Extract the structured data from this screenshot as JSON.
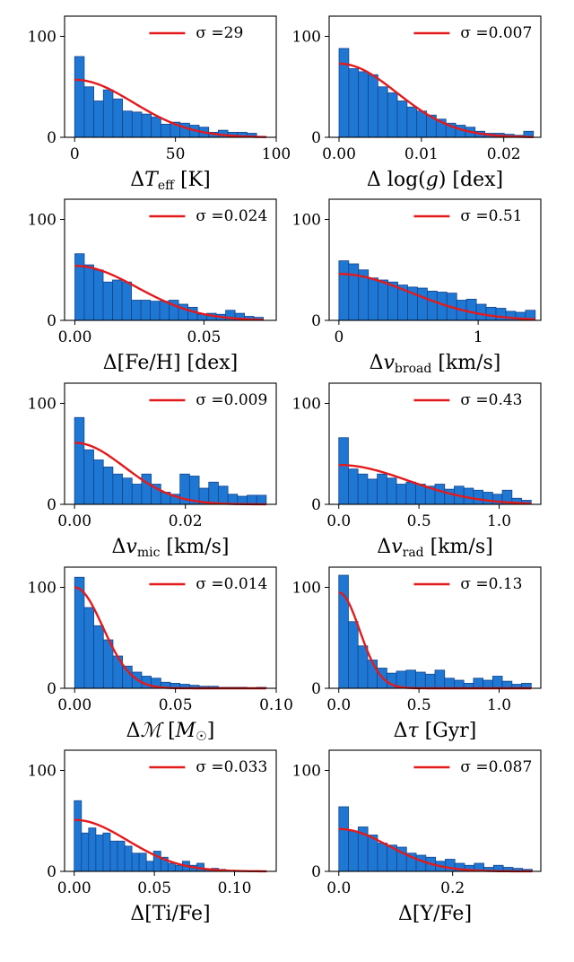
{
  "chart_data": [
    {
      "type": "bar",
      "xlabel": "ΔT_eff [K]",
      "xlabel_parts": {
        "pre": "Δ",
        "var": "T",
        "sub": "eff",
        "post": " [K]"
      },
      "legend": {
        "label": "σ =29",
        "color": "#e31a1c"
      },
      "xlim": [
        -5,
        100
      ],
      "ylim": [
        0,
        120
      ],
      "xticks": [
        0,
        50,
        100
      ],
      "xtick_labels": [
        "0",
        "50",
        "100"
      ],
      "yticks": [
        0,
        100
      ],
      "ytick_labels": [
        "0",
        "100"
      ],
      "bins": {
        "start": 0,
        "width": 4.75,
        "counts": [
          80,
          50,
          36,
          47,
          38,
          26,
          25,
          23,
          20,
          13,
          15,
          14,
          12,
          10,
          5,
          7,
          5,
          5,
          4,
          1
        ]
      },
      "gauss": {
        "amplitude": 57,
        "sigma": 29,
        "xmax": 95
      }
    },
    {
      "type": "bar",
      "xlabel": "Δ log(g) [dex]",
      "xlabel_parts": {
        "pre": "Δ log(",
        "var": "g",
        "sub": "",
        "post": ") [dex]"
      },
      "legend": {
        "label": "σ =0.007",
        "color": "#e31a1c"
      },
      "xlim": [
        -0.0012,
        0.0245
      ],
      "ylim": [
        0,
        120
      ],
      "xticks": [
        0,
        0.01,
        0.02
      ],
      "xtick_labels": [
        "0.00",
        "0.01",
        "0.02"
      ],
      "yticks": [
        0,
        100
      ],
      "ytick_labels": [
        "0",
        "100"
      ],
      "bins": {
        "start": 0,
        "width": 0.00118,
        "counts": [
          88,
          68,
          65,
          62,
          50,
          44,
          36,
          30,
          26,
          22,
          18,
          14,
          12,
          10,
          6,
          4,
          4,
          3,
          2,
          6
        ]
      },
      "gauss": {
        "amplitude": 73,
        "sigma": 0.007,
        "xmax": 0.0236
      }
    },
    {
      "type": "bar",
      "xlabel": "Δ[Fe/H] [dex]",
      "xlabel_parts": {
        "pre": "Δ[Fe/H] [dex]",
        "var": "",
        "sub": "",
        "post": ""
      },
      "legend": {
        "label": "σ =0.024",
        "color": "#e31a1c"
      },
      "xlim": [
        -0.004,
        0.078
      ],
      "ylim": [
        0,
        120
      ],
      "xticks": [
        0,
        0.05
      ],
      "xtick_labels": [
        "0.00",
        "0.05"
      ],
      "yticks": [
        0,
        100
      ],
      "ytick_labels": [
        "0",
        "100"
      ],
      "bins": {
        "start": 0,
        "width": 0.00365,
        "counts": [
          66,
          55,
          50,
          38,
          40,
          38,
          20,
          20,
          19,
          19,
          20,
          16,
          13,
          6,
          7,
          6,
          10,
          7,
          4,
          3
        ]
      },
      "gauss": {
        "amplitude": 54,
        "sigma": 0.024,
        "xmax": 0.073
      }
    },
    {
      "type": "bar",
      "xlabel": "Δv_broad [km/s]",
      "xlabel_parts": {
        "pre": "Δ",
        "var": "v",
        "sub": "broad",
        "post": " [km/s]"
      },
      "legend": {
        "label": "σ =0.51",
        "color": "#e31a1c"
      },
      "xlim": [
        -0.07,
        1.45
      ],
      "ylim": [
        0,
        120
      ],
      "xticks": [
        0,
        1
      ],
      "xtick_labels": [
        "0",
        "1"
      ],
      "yticks": [
        0,
        100
      ],
      "ytick_labels": [
        "0",
        "100"
      ],
      "bins": {
        "start": 0,
        "width": 0.0705,
        "counts": [
          59,
          56,
          50,
          42,
          40,
          38,
          35,
          33,
          32,
          29,
          28,
          27,
          20,
          21,
          16,
          13,
          12,
          9,
          8,
          10
        ]
      },
      "gauss": {
        "amplitude": 46,
        "sigma": 0.51,
        "xmax": 1.41
      }
    },
    {
      "type": "bar",
      "xlabel": "Δv_mic [km/s]",
      "xlabel_parts": {
        "pre": "Δ",
        "var": "v",
        "sub": "mic",
        "post": " [km/s]"
      },
      "legend": {
        "label": "σ =0.009",
        "color": "#e31a1c"
      },
      "xlim": [
        -0.0018,
        0.0364
      ],
      "ylim": [
        0,
        120
      ],
      "xticks": [
        0,
        0.02
      ],
      "xtick_labels": [
        "0.00",
        "0.02"
      ],
      "yticks": [
        0,
        100
      ],
      "ytick_labels": [
        "0",
        "100"
      ],
      "bins": {
        "start": 0,
        "width": 0.00173,
        "counts": [
          86,
          54,
          44,
          37,
          30,
          26,
          20,
          30,
          20,
          12,
          10,
          30,
          28,
          16,
          22,
          18,
          10,
          8,
          9,
          9
        ]
      },
      "gauss": {
        "amplitude": 61,
        "sigma": 0.009,
        "xmax": 0.0346
      }
    },
    {
      "type": "bar",
      "xlabel": "Δv_rad [km/s]",
      "xlabel_parts": {
        "pre": "Δ",
        "var": "v",
        "sub": "rad",
        "post": " [km/s]"
      },
      "legend": {
        "label": "σ =0.43",
        "color": "#e31a1c"
      },
      "xlim": [
        -0.06,
        1.26
      ],
      "ylim": [
        0,
        120
      ],
      "xticks": [
        0,
        0.5,
        1
      ],
      "xtick_labels": [
        "0.0",
        "0.5",
        "1.0"
      ],
      "yticks": [
        0,
        100
      ],
      "ytick_labels": [
        "0",
        "100"
      ],
      "bins": {
        "start": 0,
        "width": 0.06,
        "counts": [
          66,
          35,
          30,
          25,
          30,
          26,
          20,
          22,
          20,
          18,
          20,
          15,
          18,
          16,
          14,
          12,
          10,
          14,
          6,
          4
        ]
      },
      "gauss": {
        "amplitude": 39,
        "sigma": 0.43,
        "xmax": 1.2
      }
    },
    {
      "type": "bar",
      "xlabel": "ΔM [M☉]",
      "xlabel_parts": {
        "pre": "Δ",
        "var": "ℳ",
        "sub": "",
        "post": " [",
        "var2": "M",
        "sub2": "☉",
        "post2": "]"
      },
      "legend": {
        "label": "σ =0.014",
        "color": "#e31a1c"
      },
      "xlim": [
        -0.005,
        0.1
      ],
      "ylim": [
        0,
        120
      ],
      "xticks": [
        0,
        0.05,
        0.1
      ],
      "xtick_labels": [
        "0.00",
        "0.05",
        "0.10"
      ],
      "yticks": [
        0,
        100
      ],
      "ytick_labels": [
        "0",
        "100"
      ],
      "bins": {
        "start": 0,
        "width": 0.00475,
        "counts": [
          110,
          80,
          62,
          48,
          32,
          22,
          16,
          12,
          10,
          6,
          5,
          4,
          3,
          2,
          2,
          1,
          1,
          1,
          0,
          1
        ]
      },
      "gauss": {
        "amplitude": 100,
        "sigma": 0.014,
        "xmax": 0.095
      }
    },
    {
      "type": "bar",
      "xlabel": "Δτ [Gyr]",
      "xlabel_parts": {
        "pre": "Δ",
        "var": "τ",
        "sub": "",
        "post": " [Gyr]"
      },
      "legend": {
        "label": "σ =0.13",
        "color": "#e31a1c"
      },
      "xlim": [
        -0.06,
        1.26
      ],
      "ylim": [
        0,
        120
      ],
      "xticks": [
        0,
        0.5,
        1
      ],
      "xtick_labels": [
        "0.0",
        "0.5",
        "1.0"
      ],
      "yticks": [
        0,
        100
      ],
      "ytick_labels": [
        "0",
        "100"
      ],
      "bins": {
        "start": 0,
        "width": 0.06,
        "counts": [
          112,
          66,
          42,
          28,
          20,
          15,
          17,
          18,
          16,
          14,
          18,
          10,
          8,
          5,
          10,
          8,
          12,
          7,
          4,
          5
        ]
      },
      "gauss": {
        "amplitude": 95,
        "sigma": 0.13,
        "xmax": 1.2
      }
    },
    {
      "type": "bar",
      "xlabel": "Δ[Ti/Fe]",
      "xlabel_parts": {
        "pre": "Δ[Ti/Fe]",
        "var": "",
        "sub": "",
        "post": ""
      },
      "legend": {
        "label": "σ =0.033",
        "color": "#e31a1c"
      },
      "xlim": [
        -0.006,
        0.126
      ],
      "ylim": [
        0,
        120
      ],
      "xticks": [
        0,
        0.05,
        0.1
      ],
      "xtick_labels": [
        "0.00",
        "0.05",
        "0.10"
      ],
      "yticks": [
        0,
        100
      ],
      "ytick_labels": [
        "0",
        "100"
      ],
      "bins": {
        "start": 0,
        "width": 0.0045,
        "counts": [
          70,
          38,
          43,
          36,
          38,
          30,
          30,
          25,
          18,
          18,
          10,
          20,
          14,
          8,
          6,
          10,
          6,
          8,
          2,
          3,
          2,
          1,
          1
        ]
      },
      "gauss": {
        "amplitude": 51,
        "sigma": 0.033,
        "xmax": 0.12
      }
    },
    {
      "type": "bar",
      "xlabel": "Δ[Y/Fe]",
      "xlabel_parts": {
        "pre": "Δ[Y/Fe]",
        "var": "",
        "sub": "",
        "post": ""
      },
      "legend": {
        "label": "σ =0.087",
        "color": "#e31a1c"
      },
      "xlim": [
        -0.017,
        0.355
      ],
      "ylim": [
        0,
        120
      ],
      "xticks": [
        0,
        0.2
      ],
      "xtick_labels": [
        "0.0",
        "0.2"
      ],
      "yticks": [
        0,
        100
      ],
      "ytick_labels": [
        "0",
        "100"
      ],
      "bins": {
        "start": 0,
        "width": 0.017,
        "counts": [
          64,
          40,
          44,
          36,
          28,
          26,
          24,
          18,
          16,
          14,
          10,
          12,
          8,
          6,
          8,
          4,
          6,
          4,
          3,
          2
        ]
      },
      "gauss": {
        "amplitude": 42,
        "sigma": 0.087,
        "xmax": 0.34
      }
    }
  ]
}
